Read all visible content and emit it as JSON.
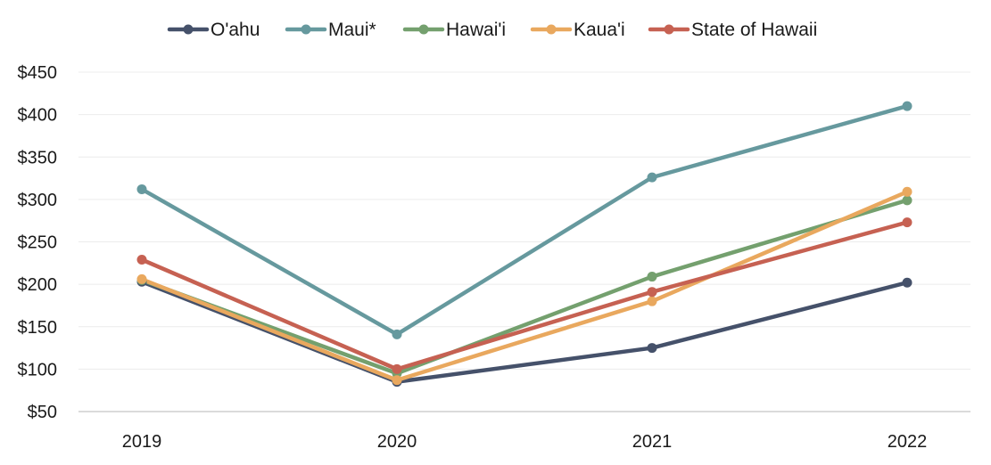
{
  "chart_data": {
    "type": "line",
    "categories": [
      "2019",
      "2020",
      "2021",
      "2022"
    ],
    "series": [
      {
        "name": "O'ahu",
        "color": "#45516a",
        "values": [
          203,
          85,
          125,
          202
        ]
      },
      {
        "name": "Maui*",
        "color": "#66999e",
        "values": [
          312,
          141,
          326,
          410
        ]
      },
      {
        "name": "Hawai'i",
        "color": "#74a06e",
        "values": [
          205,
          95,
          209,
          299
        ]
      },
      {
        "name": "Kaua'i",
        "color": "#e9a85e",
        "values": [
          206,
          87,
          180,
          309
        ]
      },
      {
        "name": "State of Hawaii",
        "color": "#c66152",
        "values": [
          229,
          100,
          191,
          273
        ]
      }
    ],
    "yticks": [
      "$50",
      "$100",
      "$150",
      "$200",
      "$250",
      "$300",
      "$350",
      "$400",
      "$450"
    ],
    "ylim": [
      50,
      450
    ],
    "grid": true,
    "legend": "top-center"
  }
}
